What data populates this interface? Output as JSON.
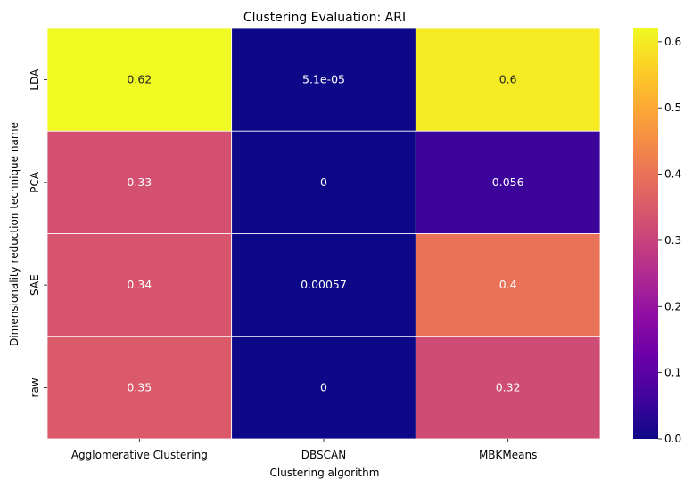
{
  "chart_data": {
    "type": "heatmap",
    "title": "Clustering Evaluation: ARI",
    "xlabel": "Clustering algorithm",
    "ylabel": "Dimensionality reduction technique name",
    "x_categories": [
      "Agglomerative Clustering",
      "DBSCAN",
      "MBKMeans"
    ],
    "y_categories": [
      "LDA",
      "PCA",
      "SAE",
      "raw"
    ],
    "values": [
      [
        0.62,
        5.1e-05,
        0.6
      ],
      [
        0.33,
        0.0,
        0.056
      ],
      [
        0.34,
        0.00057,
        0.4
      ],
      [
        0.35,
        0.0,
        0.32
      ]
    ],
    "annotations": [
      [
        "0.62",
        "5.1e-05",
        "0.6"
      ],
      [
        "0.33",
        "0",
        "0.056"
      ],
      [
        "0.34",
        "0.00057",
        "0.4"
      ],
      [
        "0.35",
        "0",
        "0.32"
      ]
    ],
    "colormap": "plasma",
    "vmin": 0.0,
    "vmax": 0.62,
    "colorbar_ticks": [
      0.0,
      0.1,
      0.2,
      0.3,
      0.4,
      0.5,
      0.6
    ],
    "colorbar_tick_labels": [
      "0.0",
      "0.1",
      "0.2",
      "0.3",
      "0.4",
      "0.5",
      "0.6"
    ],
    "cell_border_color": "#ffffff",
    "legend": "colorbar-right"
  }
}
